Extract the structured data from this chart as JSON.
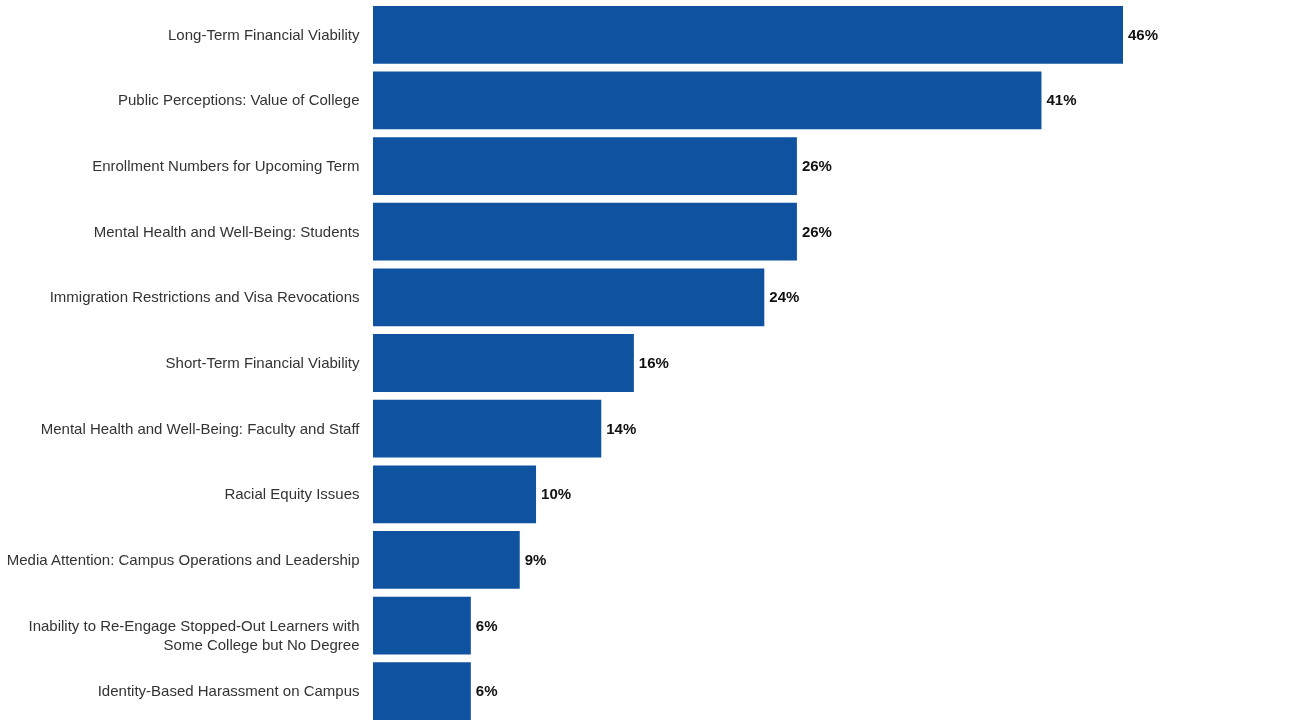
{
  "chart_data": {
    "type": "bar",
    "orientation": "horizontal",
    "categories": [
      "Long-Term Financial Viability",
      "Public Perceptions: Value of College",
      "Enrollment Numbers for Upcoming Term",
      "Mental Health and Well-Being: Students",
      "Immigration Restrictions and Visa Revocations",
      "Short-Term Financial Viability",
      "Mental Health and Well-Being: Faculty and Staff",
      "Racial Equity Issues",
      "Media Attention: Campus Operations and Leadership",
      "Inability to Re-Engage Stopped-Out Learners with\nSome College but No Degree",
      "Identity-Based Harassment on Campus"
    ],
    "values": [
      46,
      41,
      26,
      26,
      24,
      16,
      14,
      10,
      9,
      6,
      6
    ],
    "value_labels": [
      "46%",
      "41%",
      "26%",
      "26%",
      "24%",
      "16%",
      "14%",
      "10%",
      "9%",
      "6%",
      "6%"
    ],
    "color": "#0f52a0",
    "tick_labels": "y"
  }
}
